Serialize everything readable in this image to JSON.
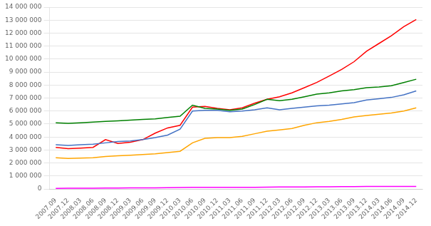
{
  "chart_data": {
    "type": "line",
    "categories": [
      "2007.09",
      "2007.12",
      "2008.03",
      "2008.06",
      "2008.09",
      "2008.12",
      "2009.03",
      "2009.06",
      "2009.09",
      "2009.12",
      "2010.03",
      "2010.06",
      "2010.09",
      "2010.12",
      "2011.03",
      "2011.06",
      "2011.09",
      "2011.12",
      "2012.03",
      "2012.06",
      "2012.09",
      "2012.12",
      "2013.03",
      "2013.06",
      "2013.09",
      "2013.12",
      "2014.03",
      "2014.06",
      "2014.09",
      "2014.12"
    ],
    "series": [
      {
        "color": "#008000",
        "values": [
          5100000,
          5050000,
          5100000,
          5150000,
          5200000,
          5250000,
          5300000,
          5350000,
          5400000,
          5500000,
          5600000,
          6450000,
          6200000,
          6150000,
          6050000,
          6150000,
          6500000,
          6900000,
          6800000,
          6900000,
          7100000,
          7300000,
          7400000,
          7550000,
          7650000,
          7800000,
          7850000,
          7950000,
          8200000,
          8450000
        ]
      },
      {
        "color": "#4472c4",
        "values": [
          3400000,
          3350000,
          3400000,
          3450000,
          3550000,
          3650000,
          3700000,
          3800000,
          3950000,
          4150000,
          4600000,
          6000000,
          6050000,
          6050000,
          5950000,
          6000000,
          6100000,
          6250000,
          6100000,
          6200000,
          6300000,
          6400000,
          6450000,
          6550000,
          6650000,
          6850000,
          6950000,
          7050000,
          7250000,
          7550000
        ]
      },
      {
        "color": "#ff0000",
        "values": [
          3200000,
          3100000,
          3150000,
          3200000,
          3800000,
          3500000,
          3600000,
          3800000,
          4300000,
          4700000,
          4900000,
          6300000,
          6350000,
          6200000,
          6100000,
          6250000,
          6600000,
          6900000,
          7100000,
          7400000,
          7800000,
          8200000,
          8700000,
          9200000,
          9800000,
          10600000,
          11200000,
          11800000,
          12500000,
          13050000
        ]
      },
      {
        "color": "#ffa500",
        "values": [
          2400000,
          2350000,
          2380000,
          2400000,
          2500000,
          2550000,
          2600000,
          2650000,
          2700000,
          2800000,
          2900000,
          3550000,
          3900000,
          3950000,
          3950000,
          4050000,
          4250000,
          4450000,
          4550000,
          4650000,
          4900000,
          5100000,
          5200000,
          5350000,
          5550000,
          5650000,
          5750000,
          5850000,
          6000000,
          6250000
        ]
      },
      {
        "color": "#ff00ff",
        "values": [
          50000,
          60000,
          60000,
          60000,
          70000,
          70000,
          80000,
          90000,
          90000,
          100000,
          110000,
          130000,
          120000,
          120000,
          120000,
          130000,
          130000,
          140000,
          150000,
          160000,
          160000,
          170000,
          170000,
          180000,
          180000,
          190000,
          190000,
          190000,
          200000,
          200000
        ]
      }
    ],
    "ylim": [
      0,
      14000000
    ],
    "yticks": [
      0,
      {
        "value": 1000000,
        "label": "1 000 000"
      },
      {
        "value": 2000000,
        "label": "2 000 000"
      },
      {
        "value": 3000000,
        "label": "3 000 000"
      },
      {
        "value": 4000000,
        "label": "4 000 000"
      },
      {
        "value": 5000000,
        "label": "5 000 000"
      },
      {
        "value": 6000000,
        "label": "6 000 000"
      },
      {
        "value": 7000000,
        "label": "7 000 000"
      },
      {
        "value": 8000000,
        "label": "8 000 000"
      },
      {
        "value": 9000000,
        "label": "9 000 000"
      },
      {
        "value": 10000000,
        "label": "10 000 000"
      },
      {
        "value": 11000000,
        "label": "11 000 000"
      },
      {
        "value": 12000000,
        "label": "12 000 000"
      },
      {
        "value": 13000000,
        "label": "13 000 000"
      },
      {
        "value": 14000000,
        "label": "14 000 000"
      }
    ],
    "grid": true
  }
}
